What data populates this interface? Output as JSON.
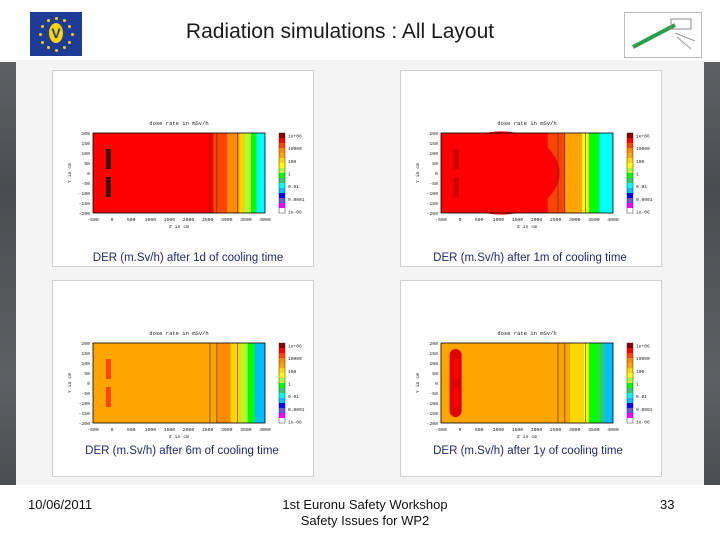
{
  "header": {
    "title": "Radiation simulations : All Layout",
    "eu_logo_letter": "V"
  },
  "plots": [
    {
      "caption": "DER (m.Sv/h) after 1d of cooling time",
      "plot_title": "dose rate in mSv/h",
      "variant": "1d"
    },
    {
      "caption": "DER (m.Sv/h) after 1m of cooling time",
      "plot_title": "dose rate in mSv/h",
      "variant": "1m"
    },
    {
      "caption": "DER (m.Sv/h) after 6m of cooling time",
      "plot_title": "dose rate in mSv/h",
      "variant": "6m"
    },
    {
      "caption": "DER (m.Sv/h) after 1y of cooling time",
      "plot_title": "dose rate in mSv/h",
      "variant": "1y"
    }
  ],
  "axis": {
    "y_ticks": [
      "200",
      "150",
      "100",
      "50",
      "0",
      "-50",
      "-100",
      "-150",
      "-200"
    ],
    "x_ticks": [
      "-500",
      "0",
      "500",
      "1000",
      "1500",
      "2000",
      "2500",
      "3000",
      "3500",
      "4000"
    ],
    "x_label": "Z in cm",
    "y_label": "Y in cm"
  },
  "colorbar": {
    "labels": [
      "1e+06",
      "10000",
      "100",
      "1",
      "0.01",
      "0.0001",
      "1e-06"
    ],
    "colors": [
      "#ffffff",
      "#ff00ff",
      "#6a5acd",
      "#0000ff",
      "#00bfff",
      "#00ffff",
      "#2ecc71",
      "#00ff00",
      "#adff2f",
      "#ffff00",
      "#ffd700",
      "#ffa500",
      "#ff8c00",
      "#ff4500",
      "#ff0000",
      "#8b0000"
    ]
  },
  "footer": {
    "date": "10/06/2011",
    "line1": "1st Euronu Safety Workshop",
    "line2": "Safety Issues for WP2",
    "page": "33"
  }
}
